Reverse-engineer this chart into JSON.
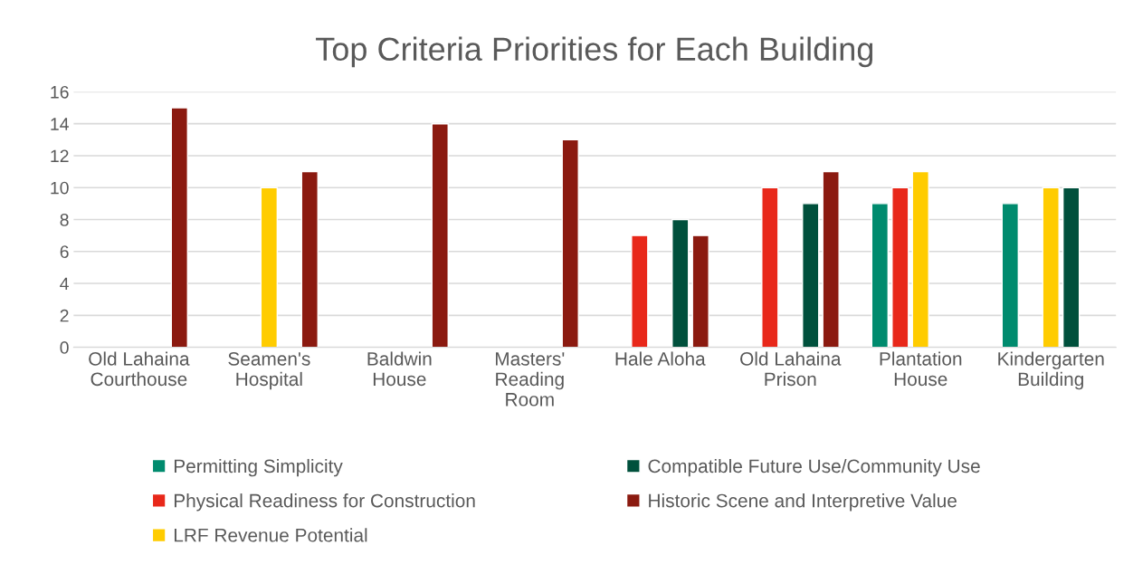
{
  "chart_data": {
    "type": "bar",
    "title": "Top Criteria Priorities for Each Building",
    "categories": [
      "Old Lahaina\nCourthouse",
      "Seamen's\nHospital",
      "Baldwin\nHouse",
      "Masters'\nReading\nRoom",
      "Hale Aloha",
      "Old Lahaina\nPrison",
      "Plantation\nHouse",
      "Kindergarten\nBuilding"
    ],
    "series": [
      {
        "name": "Permitting Simplicity",
        "color": "#008b6e",
        "values": [
          null,
          null,
          null,
          null,
          null,
          null,
          9,
          9
        ]
      },
      {
        "name": "Physical Readiness for Construction",
        "color": "#e8281a",
        "values": [
          null,
          null,
          null,
          null,
          7,
          10,
          10,
          null
        ]
      },
      {
        "name": "LRF Revenue Potential",
        "color": "#ffcc00",
        "values": [
          null,
          10,
          null,
          null,
          null,
          null,
          11,
          10
        ]
      },
      {
        "name": "Compatible Future Use/Community Use",
        "color": "#00503c",
        "values": [
          null,
          null,
          null,
          null,
          8,
          9,
          null,
          10
        ]
      },
      {
        "name": "Historic Scene and Interpretive Value",
        "color": "#8b1a10",
        "values": [
          15,
          11,
          14,
          13,
          7,
          11,
          null,
          null
        ]
      }
    ],
    "ylim": [
      0,
      16
    ],
    "yticks": [
      0,
      2,
      4,
      6,
      8,
      10,
      12,
      14,
      16
    ],
    "grid": "y",
    "legend": "bottom"
  }
}
